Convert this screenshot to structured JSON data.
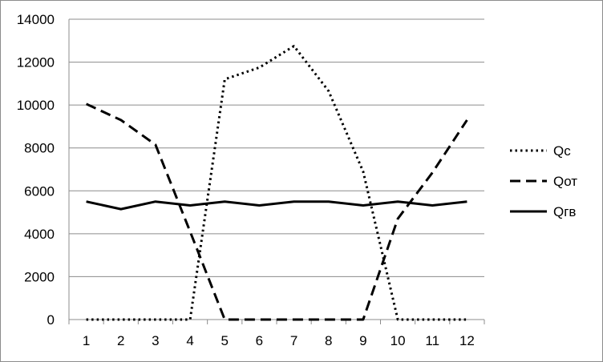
{
  "chart_data": {
    "type": "line",
    "title": "",
    "xlabel": "",
    "ylabel": "",
    "categories": [
      "1",
      "2",
      "3",
      "4",
      "5",
      "6",
      "7",
      "8",
      "9",
      "10",
      "11",
      "12"
    ],
    "ylim": [
      0,
      14000
    ],
    "yticks": [
      "0",
      "2000",
      "4000",
      "6000",
      "8000",
      "10000",
      "12000",
      "14000"
    ],
    "grid": true,
    "legend_position": "right",
    "series": [
      {
        "name": "Qс",
        "style": "dotted",
        "color": "#000000",
        "values": [
          0,
          0,
          0,
          0,
          11200,
          11750,
          12750,
          10650,
          6900,
          0,
          0,
          0
        ]
      },
      {
        "name": "Qот",
        "style": "dashed",
        "color": "#000000",
        "values": [
          10050,
          9300,
          8150,
          4100,
          0,
          0,
          0,
          0,
          0,
          4700,
          6850,
          9300
        ]
      },
      {
        "name": "Qгв",
        "style": "solid",
        "color": "#000000",
        "values": [
          5500,
          5150,
          5500,
          5320,
          5500,
          5320,
          5500,
          5500,
          5320,
          5500,
          5320,
          5500
        ]
      }
    ]
  }
}
